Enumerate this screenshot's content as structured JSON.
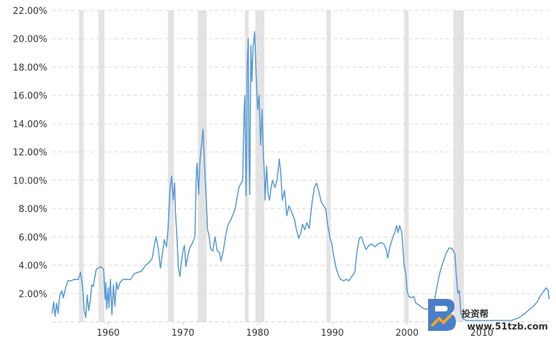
{
  "chart_data": {
    "type": "line",
    "title": "",
    "xlabel": "",
    "ylabel": "",
    "x_range": [
      1952.5,
      2019.0
    ],
    "ylim": [
      0,
      22
    ],
    "y_ticks": [
      2,
      4,
      6,
      8,
      10,
      12,
      14,
      16,
      18,
      20,
      22
    ],
    "y_tick_labels": [
      "2.00%",
      "4.00%",
      "6.00%",
      "8.00%",
      "10.00%",
      "12.00%",
      "14.00%",
      "16.00%",
      "18.00%",
      "20.00%",
      "22.00%"
    ],
    "x_ticks": [
      1960,
      1970,
      1980,
      1990,
      2000,
      2010
    ],
    "x_tick_labels": [
      "1960",
      "1970",
      "1980",
      "1990",
      "2000",
      "2010"
    ],
    "grid": "horizontal-dashed",
    "line_color": "#5b9bd5",
    "band_color": "#e3e3e3",
    "recessions": [
      [
        1956.1,
        1956.7
      ],
      [
        1958.7,
        1959.5
      ],
      [
        1968.0,
        1968.8
      ],
      [
        1972.0,
        1973.2
      ],
      [
        1978.3,
        1978.8
      ],
      [
        1979.7,
        1980.9
      ],
      [
        1989.2,
        1989.8
      ],
      [
        1999.6,
        2000.2
      ],
      [
        2006.2,
        2007.6
      ]
    ],
    "series": [
      {
        "values": [
          [
            1952.5,
            0.6
          ],
          [
            1952.7,
            1.4
          ],
          [
            1952.9,
            0.4
          ],
          [
            1953.1,
            1.3
          ],
          [
            1953.3,
            0.6
          ],
          [
            1953.5,
            1.8
          ],
          [
            1953.8,
            2.2
          ],
          [
            1954.0,
            1.7
          ],
          [
            1954.3,
            2.4
          ],
          [
            1954.6,
            2.9
          ],
          [
            1955.0,
            2.9
          ],
          [
            1955.5,
            3.0
          ],
          [
            1956.0,
            3.0
          ],
          [
            1956.3,
            3.5
          ],
          [
            1956.6,
            2.4
          ],
          [
            1956.8,
            0.8
          ],
          [
            1957.0,
            0.3
          ],
          [
            1957.2,
            1.9
          ],
          [
            1957.4,
            0.8
          ],
          [
            1957.6,
            1.5
          ],
          [
            1957.8,
            2.6
          ],
          [
            1958.0,
            2.5
          ],
          [
            1958.4,
            3.7
          ],
          [
            1959.0,
            3.9
          ],
          [
            1959.4,
            3.7
          ],
          [
            1959.6,
            1.6
          ],
          [
            1959.7,
            2.8
          ],
          [
            1959.8,
            0.9
          ],
          [
            1960.0,
            2.4
          ],
          [
            1960.1,
            1.0
          ],
          [
            1960.3,
            3.0
          ],
          [
            1960.5,
            0.5
          ],
          [
            1960.7,
            2.6
          ],
          [
            1960.9,
            1.1
          ],
          [
            1961.1,
            2.8
          ],
          [
            1961.3,
            2.3
          ],
          [
            1961.6,
            2.8
          ],
          [
            1962.0,
            3.0
          ],
          [
            1962.5,
            3.0
          ],
          [
            1963.0,
            3.0
          ],
          [
            1963.5,
            3.4
          ],
          [
            1964.0,
            3.5
          ],
          [
            1964.5,
            3.6
          ],
          [
            1965.0,
            4.0
          ],
          [
            1965.5,
            4.2
          ],
          [
            1965.9,
            4.5
          ],
          [
            1966.2,
            5.5
          ],
          [
            1966.4,
            6.0
          ],
          [
            1966.7,
            5.2
          ],
          [
            1966.9,
            4.2
          ],
          [
            1967.0,
            3.8
          ],
          [
            1967.2,
            4.6
          ],
          [
            1967.5,
            5.8
          ],
          [
            1967.8,
            5.3
          ],
          [
            1968.0,
            6.5
          ],
          [
            1968.3,
            9.5
          ],
          [
            1968.5,
            10.3
          ],
          [
            1968.7,
            8.6
          ],
          [
            1968.9,
            9.8
          ],
          [
            1969.0,
            7.8
          ],
          [
            1969.2,
            6.0
          ],
          [
            1969.4,
            3.8
          ],
          [
            1969.6,
            3.2
          ],
          [
            1969.8,
            4.2
          ],
          [
            1970.0,
            5.0
          ],
          [
            1970.2,
            5.4
          ],
          [
            1970.4,
            3.9
          ],
          [
            1970.6,
            4.5
          ],
          [
            1970.9,
            5.2
          ],
          [
            1971.2,
            5.5
          ],
          [
            1971.6,
            6.0
          ],
          [
            1971.8,
            10.5
          ],
          [
            1971.9,
            11.2
          ],
          [
            1972.1,
            9.0
          ],
          [
            1972.3,
            11.5
          ],
          [
            1972.5,
            12.5
          ],
          [
            1972.7,
            13.6
          ],
          [
            1972.9,
            11.0
          ],
          [
            1973.1,
            9.0
          ],
          [
            1973.3,
            6.5
          ],
          [
            1973.5,
            6.1
          ],
          [
            1973.7,
            5.2
          ],
          [
            1974.0,
            5.0
          ],
          [
            1974.3,
            6.0
          ],
          [
            1974.6,
            5.0
          ],
          [
            1974.9,
            4.9
          ],
          [
            1975.1,
            4.3
          ],
          [
            1975.4,
            5.0
          ],
          [
            1975.7,
            6.0
          ],
          [
            1976.0,
            6.8
          ],
          [
            1976.5,
            7.3
          ],
          [
            1977.0,
            8.0
          ],
          [
            1977.5,
            9.5
          ],
          [
            1977.8,
            9.8
          ],
          [
            1978.0,
            10.0
          ],
          [
            1978.2,
            15.0
          ],
          [
            1978.3,
            16.0
          ],
          [
            1978.45,
            8.9
          ],
          [
            1978.55,
            12.5
          ],
          [
            1978.6,
            18.0
          ],
          [
            1978.75,
            20.0
          ],
          [
            1978.85,
            12.0
          ],
          [
            1978.95,
            9.0
          ],
          [
            1979.1,
            19.5
          ],
          [
            1979.25,
            17.0
          ],
          [
            1979.4,
            19.5
          ],
          [
            1979.6,
            20.5
          ],
          [
            1979.8,
            17.5
          ],
          [
            1980.0,
            15.0
          ],
          [
            1980.2,
            16.0
          ],
          [
            1980.4,
            12.5
          ],
          [
            1980.6,
            15.0
          ],
          [
            1980.75,
            12.0
          ],
          [
            1980.9,
            10.5
          ],
          [
            1981.0,
            8.6
          ],
          [
            1981.2,
            11.0
          ],
          [
            1981.4,
            9.0
          ],
          [
            1981.6,
            8.6
          ],
          [
            1981.8,
            9.5
          ],
          [
            1982.0,
            10.0
          ],
          [
            1982.3,
            9.5
          ],
          [
            1982.6,
            10.0
          ],
          [
            1982.9,
            11.5
          ],
          [
            1983.1,
            10.5
          ],
          [
            1983.3,
            8.6
          ],
          [
            1983.6,
            9.3
          ],
          [
            1983.9,
            7.5
          ],
          [
            1984.2,
            8.2
          ],
          [
            1984.6,
            7.7
          ],
          [
            1984.9,
            7.3
          ],
          [
            1985.2,
            6.5
          ],
          [
            1985.5,
            5.9
          ],
          [
            1985.8,
            6.3
          ],
          [
            1986.0,
            6.9
          ],
          [
            1986.3,
            6.5
          ],
          [
            1986.6,
            7.0
          ],
          [
            1986.9,
            6.6
          ],
          [
            1987.3,
            8.5
          ],
          [
            1987.6,
            9.5
          ],
          [
            1987.9,
            9.8
          ],
          [
            1988.2,
            9.2
          ],
          [
            1988.5,
            8.5
          ],
          [
            1988.8,
            8.2
          ],
          [
            1989.1,
            8.0
          ],
          [
            1989.4,
            6.8
          ],
          [
            1989.7,
            5.9
          ],
          [
            1989.9,
            5.6
          ],
          [
            1990.2,
            4.6
          ],
          [
            1990.5,
            3.8
          ],
          [
            1990.8,
            3.3
          ],
          [
            1991.1,
            3.0
          ],
          [
            1991.5,
            2.9
          ],
          [
            1991.9,
            3.0
          ],
          [
            1992.2,
            2.9
          ],
          [
            1992.6,
            3.2
          ],
          [
            1993.0,
            3.5
          ],
          [
            1993.3,
            5.0
          ],
          [
            1993.6,
            5.9
          ],
          [
            1993.9,
            6.0
          ],
          [
            1994.2,
            5.5
          ],
          [
            1994.5,
            5.1
          ],
          [
            1994.9,
            5.4
          ],
          [
            1995.3,
            5.5
          ],
          [
            1995.7,
            5.3
          ],
          [
            1996.1,
            5.5
          ],
          [
            1996.5,
            5.6
          ],
          [
            1996.9,
            5.5
          ],
          [
            1997.2,
            5.1
          ],
          [
            1997.4,
            4.5
          ],
          [
            1997.7,
            5.3
          ],
          [
            1998.0,
            5.8
          ],
          [
            1998.4,
            6.4
          ],
          [
            1998.6,
            6.8
          ],
          [
            1998.8,
            6.3
          ],
          [
            1999.0,
            6.8
          ],
          [
            1999.3,
            6.3
          ],
          [
            1999.6,
            4.0
          ],
          [
            1999.8,
            3.5
          ],
          [
            2000.0,
            2.2
          ],
          [
            2000.2,
            1.8
          ],
          [
            2000.6,
            1.7
          ],
          [
            2000.9,
            1.8
          ],
          [
            2001.2,
            1.3
          ],
          [
            2001.6,
            1.2
          ],
          [
            2002.0,
            1.0
          ],
          [
            2002.4,
            0.9
          ],
          [
            2002.8,
            0.9
          ],
          [
            2003.2,
            1.0
          ],
          [
            2003.6,
            1.3
          ],
          [
            2004.0,
            2.5
          ],
          [
            2004.4,
            3.5
          ],
          [
            2004.8,
            4.2
          ],
          [
            2005.2,
            4.8
          ],
          [
            2005.6,
            5.2
          ],
          [
            2006.0,
            5.2
          ],
          [
            2006.4,
            4.8
          ],
          [
            2006.6,
            3.2
          ],
          [
            2006.8,
            2.0
          ],
          [
            2007.0,
            2.2
          ],
          [
            2007.2,
            0.6
          ],
          [
            2007.5,
            0.2
          ],
          [
            2007.9,
            0.1
          ],
          [
            2008.5,
            0.1
          ],
          [
            2010.0,
            0.1
          ],
          [
            2012.0,
            0.1
          ],
          [
            2014.0,
            0.1
          ],
          [
            2015.0,
            0.3
          ],
          [
            2015.8,
            0.6
          ],
          [
            2016.4,
            0.9
          ],
          [
            2016.9,
            1.1
          ],
          [
            2017.4,
            1.4
          ],
          [
            2017.8,
            1.8
          ],
          [
            2018.2,
            2.1
          ],
          [
            2018.6,
            2.4
          ],
          [
            2018.9,
            2.2
          ],
          [
            2019.0,
            1.6
          ]
        ]
      }
    ]
  },
  "watermark": {
    "brand": "投资帮",
    "url": "www.51tzb.com",
    "color": "#4a7fc8"
  }
}
